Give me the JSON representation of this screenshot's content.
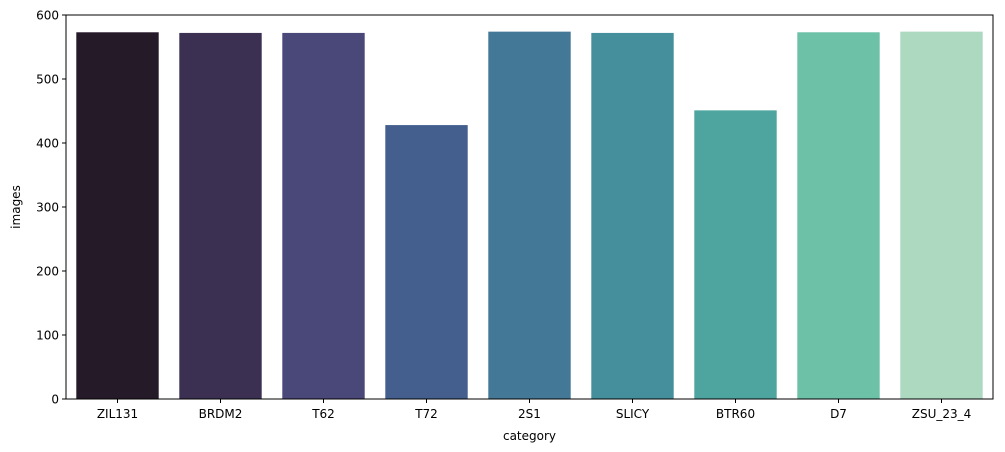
{
  "chart_data": {
    "type": "bar",
    "title": "",
    "xlabel": "category",
    "ylabel": "images",
    "categories": [
      "ZIL131",
      "BRDM2",
      "T62",
      "T72",
      "2S1",
      "SLICY",
      "BTR60",
      "D7",
      "ZSU_23_4"
    ],
    "values": [
      573,
      572,
      572,
      428,
      574,
      572,
      451,
      573,
      574
    ],
    "colors": [
      "#251b28",
      "#3b2f52",
      "#4a4879",
      "#445e8e",
      "#437897",
      "#458f9c",
      "#4ea59f",
      "#6dc1a7",
      "#acd9c0"
    ],
    "ylim": [
      0,
      600
    ],
    "yticks": [
      0,
      100,
      200,
      300,
      400,
      500,
      600
    ],
    "grid": false,
    "legend": "none"
  }
}
